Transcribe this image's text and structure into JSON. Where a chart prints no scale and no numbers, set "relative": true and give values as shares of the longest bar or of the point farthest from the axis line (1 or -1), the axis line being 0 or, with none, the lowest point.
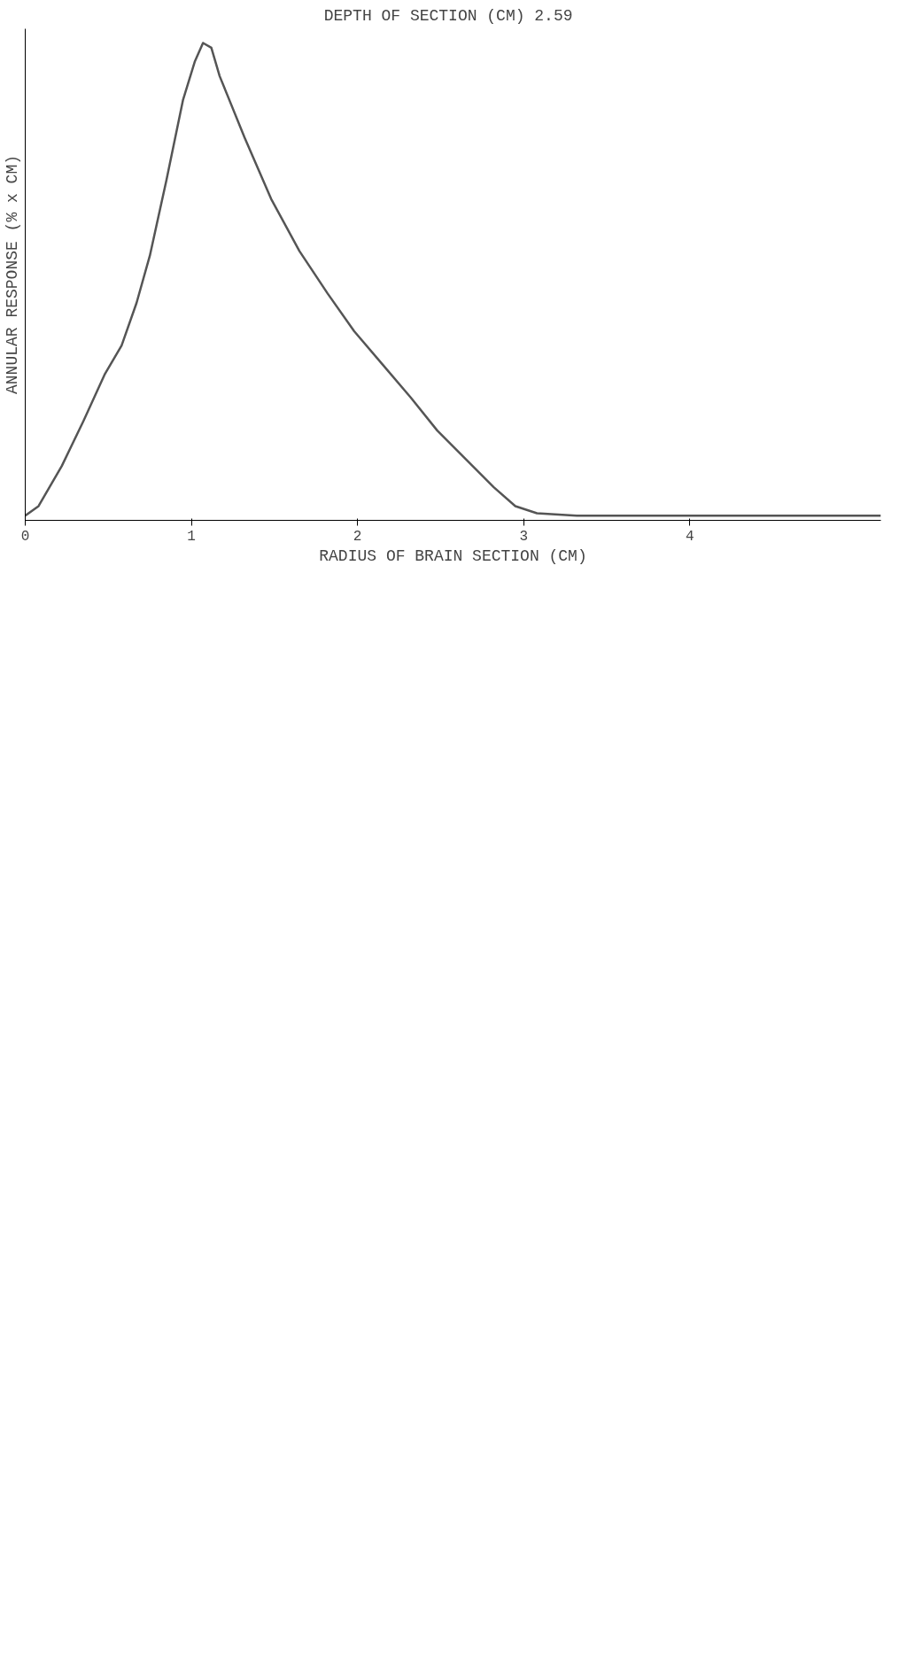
{
  "chart_data": {
    "type": "line",
    "title": "DEPTH OF SECTION (CM)  2.59",
    "xlabel": "RADIUS OF BRAIN SECTION (CM)",
    "ylabel": "ANNULAR RESPONSE (% x CM)",
    "relative": true,
    "x": [
      0.0,
      0.08,
      0.22,
      0.35,
      0.48,
      0.58,
      0.67,
      0.75,
      0.85,
      0.95,
      1.02,
      1.07,
      1.12,
      1.17,
      1.32,
      1.48,
      1.65,
      1.82,
      1.98,
      2.15,
      2.32,
      2.48,
      2.65,
      2.82,
      2.95,
      3.08,
      3.32,
      4.0,
      5.15
    ],
    "series": [
      {
        "color": "#555555",
        "values": [
          0.0,
          0.02,
          0.105,
          0.2,
          0.3,
          0.36,
          0.45,
          0.55,
          0.71,
          0.88,
          0.96,
          1.0,
          0.99,
          0.93,
          0.8,
          0.67,
          0.56,
          0.47,
          0.39,
          0.32,
          0.25,
          0.18,
          0.12,
          0.06,
          0.02,
          0.005,
          0.0,
          0.0,
          0.0
        ]
      }
    ],
    "xlim": [
      0,
      5.15
    ],
    "xticks": [
      0,
      1,
      2,
      3,
      4
    ]
  }
}
